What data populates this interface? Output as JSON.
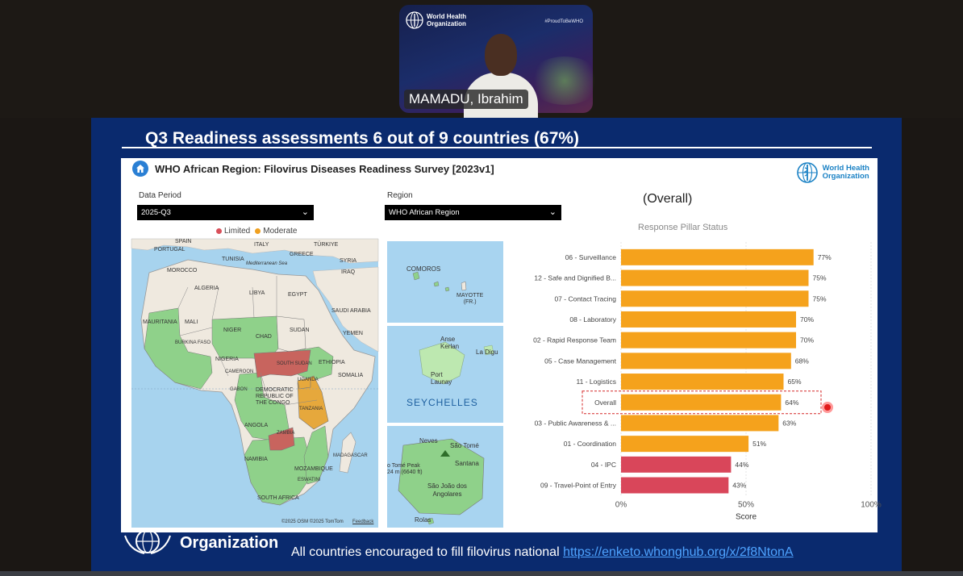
{
  "meeting": {
    "participant_name": "MAMADU, Ibrahim",
    "camera_logo": "World Health\nOrganization",
    "camera_logo_line1": "World Health",
    "camera_logo_line2": "Organization",
    "camera_hashtag": "#ProudToBeWHO"
  },
  "slide": {
    "title": "Q3 Readiness assessments 6 out of 9 countries (67%)",
    "footer_org": "Organization",
    "footer_text": "All countries encouraged to fill filovirus national ",
    "footer_link": "https://enketo.whonghub.org/x/2f8NtonA"
  },
  "dashboard": {
    "title": "WHO African Region: Filovirus Diseases Readiness Survey [2023v1]",
    "logo_line1": "World Health",
    "logo_line2": "Organization",
    "data_period_label": "Data Period",
    "data_period_value": "2025-Q3",
    "region_label": "Region",
    "region_value": "WHO African Region",
    "legend": [
      {
        "label": "Limited",
        "color": "#d9505a"
      },
      {
        "label": "Moderate",
        "color": "#f0a020"
      }
    ],
    "map_labels": {
      "spain": "SPAIN",
      "portugal": "PORTUGAL",
      "italy": "ITALY",
      "turkiye": "TÜRKIYE",
      "greece": "GREECE",
      "syria": "SYRIA",
      "iraq": "IRAQ",
      "morocco": "MOROCCO",
      "tunisia": "TUNISIA",
      "med_sea": "Mediterranean Sea",
      "algeria": "ALGERIA",
      "libya": "LIBYA",
      "egypt": "EGYPT",
      "saudi": "SAUDI ARABIA",
      "mauritania": "MAURITANIA",
      "mali": "MALI",
      "niger": "NIGER",
      "chad": "CHAD",
      "sudan": "SUDAN",
      "yemen": "YEMEN",
      "burkina": "BURKINA FASO",
      "nigeria": "NIGERIA",
      "ethiopia": "ETHIOPIA",
      "cameroon": "CAMEROON",
      "somalia": "SOMALIA",
      "south_sudan": "SOUTH SUDAN",
      "uganda": "UGANDA",
      "gabon": "GABON",
      "drc": "DEMOCRATIC\nREPUBLIC OF\nTHE CONGO",
      "tanzania": "TANZANIA",
      "angola": "ANGOLA",
      "zambia": "ZAMBIA",
      "namibia": "NAMIBIA",
      "mozambique": "MOZAMBIQUE",
      "madagascar": "MADAGASCAR",
      "eswatini": "ESWATINI",
      "south_africa": "SOUTH AFRICA",
      "attribution": "©2025 OSM  ©2025 TomTom",
      "feedback": "Feedback"
    },
    "insets": {
      "comoros": "COMOROS",
      "mayotte": "MAYOTTE\n(FR.)",
      "anse": "Anse\nKerlan",
      "la_digue": "La Digu",
      "port_launay": "Port\nLaunay",
      "seychelles": "SEYCHELLES",
      "neves": "Neves",
      "sao_tome": "São Tomé",
      "santana": "Santana",
      "peak": "o Tomé Peak\n24 m (6640 ft)",
      "sao_joao": "São João dos\nAngolares",
      "rolas": "Rolas"
    },
    "overall_title": "(Overall)",
    "chart_title": "Response Pillar Status"
  },
  "chart_data": {
    "type": "bar",
    "orientation": "horizontal",
    "title": "Response Pillar Status",
    "xlabel": "Score",
    "xlim": [
      0,
      100
    ],
    "x_ticks": [
      "0%",
      "50%",
      "100%"
    ],
    "categories": [
      "06 - Surveillance",
      "12 - Safe and Dignified B...",
      "07 - Contact Tracing",
      "08 - Laboratory",
      "02 - Rapid Response Team",
      "05 - Case Management",
      "11 - Logistics",
      "Overall",
      "03 - Public Awareness & ...",
      "01 - Coordination",
      "04 - IPC",
      "09 - Travel-Point of Entry"
    ],
    "values": [
      77,
      75,
      75,
      70,
      70,
      68,
      65,
      64,
      63,
      51,
      44,
      43
    ],
    "value_labels": [
      "77%",
      "75%",
      "75%",
      "70%",
      "70%",
      "68%",
      "65%",
      "64%",
      "63%",
      "51%",
      "44%",
      "43%"
    ],
    "bar_colors": [
      "#f5a21c",
      "#f5a21c",
      "#f5a21c",
      "#f5a21c",
      "#f5a21c",
      "#f5a21c",
      "#f5a21c",
      "#f5a21c",
      "#f5a21c",
      "#f5a21c",
      "#d9465a",
      "#d9465a"
    ],
    "highlighted_category": "Overall",
    "grid": true
  }
}
